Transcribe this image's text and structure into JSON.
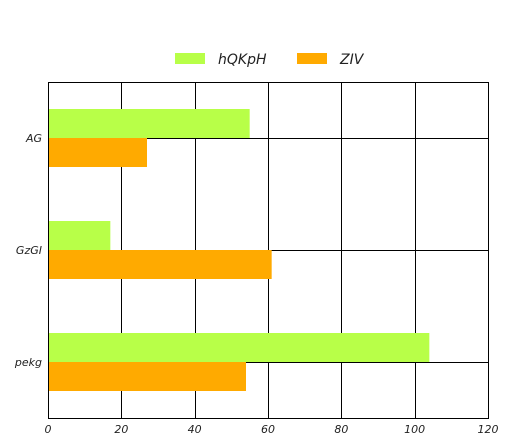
{
  "chart_data": {
    "type": "bar",
    "orientation": "horizontal",
    "categories": [
      "AG",
      "GzGI",
      "pekg"
    ],
    "series": [
      {
        "name": "hQKpH",
        "values": [
          55,
          17,
          104
        ],
        "color": "#b8ff48"
      },
      {
        "name": "ZIV",
        "values": [
          27,
          61,
          54
        ],
        "color": "#ffaa00"
      }
    ],
    "xlim": [
      0,
      120
    ],
    "xticks": [
      "0",
      "20",
      "40",
      "60",
      "80",
      "100",
      "120"
    ],
    "title": "",
    "xlabel": "",
    "ylabel": "",
    "grid": true,
    "legend_position": "top-center"
  }
}
